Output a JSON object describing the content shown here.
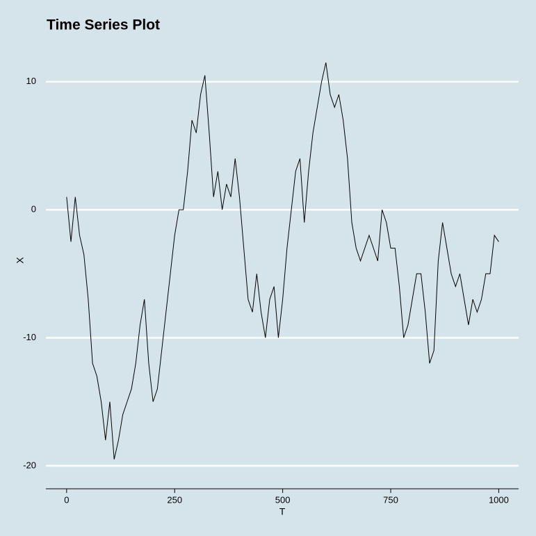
{
  "chart_data": {
    "type": "line",
    "title": "Time Series Plot",
    "x_label": "T",
    "y_label": "X",
    "x": [
      0,
      10,
      20,
      30,
      40,
      50,
      60,
      70,
      80,
      90,
      100,
      110,
      120,
      130,
      140,
      150,
      160,
      170,
      180,
      190,
      200,
      210,
      220,
      230,
      240,
      250,
      260,
      270,
      280,
      290,
      300,
      310,
      320,
      330,
      340,
      350,
      360,
      370,
      380,
      390,
      400,
      410,
      420,
      430,
      440,
      450,
      460,
      470,
      480,
      490,
      500,
      510,
      520,
      530,
      540,
      550,
      560,
      570,
      580,
      590,
      600,
      610,
      620,
      630,
      640,
      650,
      660,
      670,
      680,
      690,
      700,
      710,
      720,
      730,
      740,
      750,
      760,
      770,
      780,
      790,
      800,
      810,
      820,
      830,
      840,
      850,
      860,
      870,
      880,
      890,
      900,
      910,
      920,
      930,
      940,
      950,
      960,
      970,
      980,
      990,
      1000
    ],
    "series": [
      {
        "name": "X",
        "color": "#000000",
        "values": [
          1,
          -2.5,
          1,
          -2,
          -3.5,
          -7,
          -12,
          -13,
          -15,
          -18,
          -15,
          -19.5,
          -18,
          -16,
          -15,
          -14,
          -12,
          -9,
          -7,
          -12,
          -15,
          -14,
          -11,
          -8,
          -5,
          -2,
          0,
          0,
          3,
          7,
          6,
          9,
          10.5,
          6,
          1,
          3,
          0,
          2,
          1,
          4,
          1,
          -3,
          -7,
          -8,
          -5,
          -8,
          -10,
          -7,
          -6,
          -10,
          -7,
          -3,
          0,
          3,
          4,
          -1,
          3,
          6,
          8,
          10,
          11.5,
          9,
          8,
          9,
          7,
          4,
          -1,
          -3,
          -4,
          -3,
          -2,
          -3,
          -4,
          0,
          -1,
          -3,
          -3,
          -6,
          -10,
          -9,
          -7,
          -5,
          -5,
          -8,
          -12,
          -11,
          -4,
          -1,
          -3,
          -5,
          -6,
          -5,
          -7,
          -9,
          -7,
          -8,
          -7,
          -5,
          -5,
          -2,
          -2.5
        ]
      }
    ],
    "xlim": [
      -48,
      1046
    ],
    "ylim": [
      -21.8,
      13.7
    ],
    "xticks": [
      0,
      250,
      500,
      750,
      1000
    ],
    "yticks": [
      -20,
      -10,
      0,
      10
    ],
    "grid": true
  }
}
